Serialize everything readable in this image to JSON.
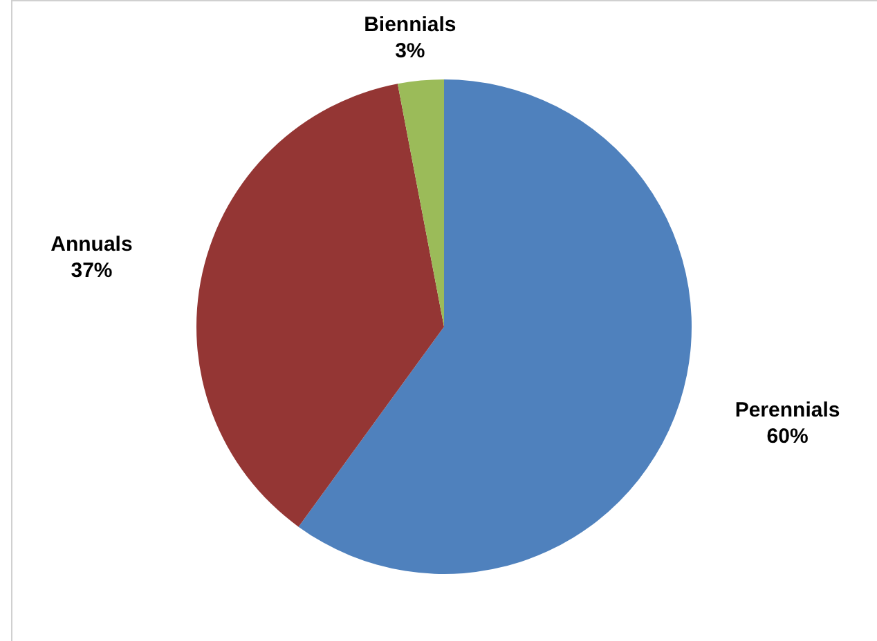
{
  "chart_data": {
    "type": "pie",
    "categories": [
      "Perennials",
      "Annuals",
      "Biennials"
    ],
    "values": [
      60,
      37,
      3
    ],
    "colors": [
      "#4f81bd",
      "#943634",
      "#9bbb59"
    ],
    "value_labels": [
      "60%",
      "37%",
      "3%"
    ]
  }
}
